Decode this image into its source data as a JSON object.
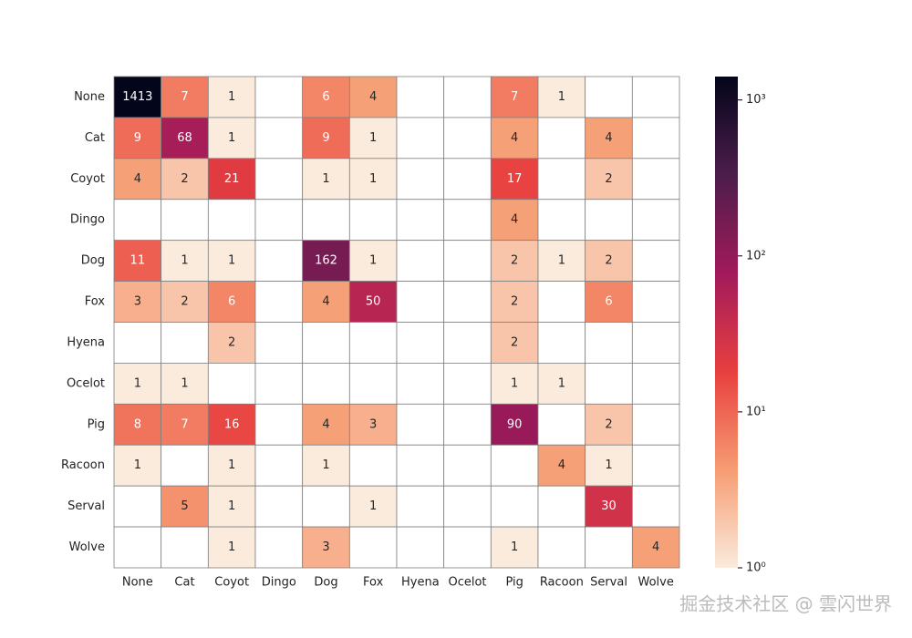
{
  "chart_data": {
    "type": "heatmap",
    "x": [
      "None",
      "Cat",
      "Coyot",
      "Dingo",
      "Dog",
      "Fox",
      "Hyena",
      "Ocelot",
      "Pig",
      "Racoon",
      "Serval",
      "Wolve"
    ],
    "y": [
      "None",
      "Cat",
      "Coyot",
      "Dingo",
      "Dog",
      "Fox",
      "Hyena",
      "Ocelot",
      "Pig",
      "Racoon",
      "Serval",
      "Wolve"
    ],
    "values": [
      [
        1413,
        7,
        1,
        null,
        6,
        4,
        null,
        null,
        7,
        1,
        null,
        null
      ],
      [
        9,
        68,
        1,
        null,
        9,
        1,
        null,
        null,
        4,
        null,
        4,
        null
      ],
      [
        4,
        2,
        21,
        null,
        1,
        1,
        null,
        null,
        17,
        null,
        2,
        null
      ],
      [
        null,
        null,
        null,
        null,
        null,
        null,
        null,
        null,
        4,
        null,
        null,
        null
      ],
      [
        11,
        1,
        1,
        null,
        162,
        1,
        null,
        null,
        2,
        1,
        2,
        null
      ],
      [
        3,
        2,
        6,
        null,
        4,
        50,
        null,
        null,
        2,
        null,
        6,
        null
      ],
      [
        null,
        null,
        2,
        null,
        null,
        null,
        null,
        null,
        2,
        null,
        null,
        null
      ],
      [
        1,
        1,
        null,
        null,
        null,
        null,
        null,
        null,
        1,
        1,
        null,
        null
      ],
      [
        8,
        7,
        16,
        null,
        4,
        3,
        null,
        null,
        90,
        null,
        2,
        null
      ],
      [
        1,
        null,
        1,
        null,
        1,
        null,
        null,
        null,
        null,
        4,
        1,
        null
      ],
      [
        null,
        5,
        1,
        null,
        null,
        1,
        null,
        null,
        null,
        null,
        30,
        null
      ],
      [
        null,
        null,
        1,
        null,
        3,
        null,
        null,
        null,
        1,
        null,
        null,
        4
      ]
    ],
    "clim": [
      1,
      1413
    ],
    "log_scale": true,
    "cticks": [
      {
        "value": 1,
        "label": "10⁰"
      },
      {
        "value": 10,
        "label": "10¹"
      },
      {
        "value": 100,
        "label": "10²"
      },
      {
        "value": 1000,
        "label": "10³"
      }
    ],
    "colorscale": [
      "#faebdd",
      "#f69c73",
      "#e83f3f",
      "#a11a5b",
      "#4c1d4b",
      "#03051a"
    ],
    "cell_border_color": "#808080"
  },
  "watermark": "掘金技术社区 @ 雲闪世界"
}
